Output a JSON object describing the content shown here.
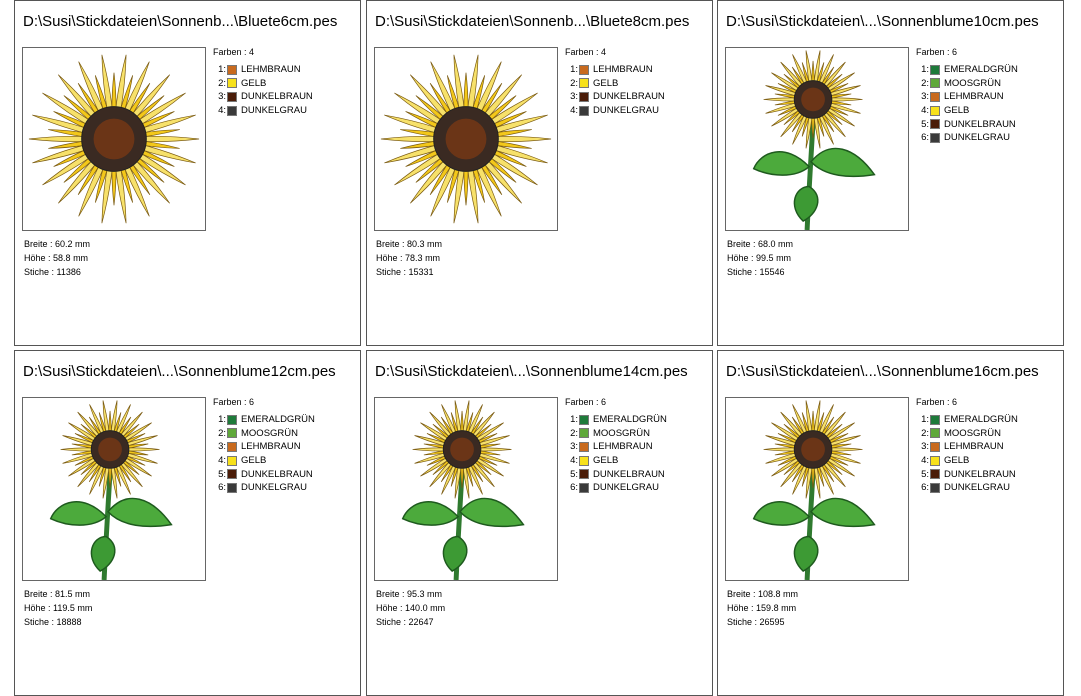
{
  "labels": {
    "colors": "Farben :",
    "width": "Breite :",
    "height": "Höhe :",
    "stitches": "Stiche :"
  },
  "cards": [
    {
      "file": "D:\\Susi\\Stickdateien\\Sonnenb...\\Bluete6cm.pes",
      "image": "sunflower-bloom-icon",
      "color_count": "4",
      "colors": [
        {
          "idx": "1:",
          "name": "LEHMBRAUN",
          "hex": "#c86a1e"
        },
        {
          "idx": "2:",
          "name": "GELB",
          "hex": "#f7e11b"
        },
        {
          "idx": "3:",
          "name": "DUNKELBRAUN",
          "hex": "#4a1c08"
        },
        {
          "idx": "4:",
          "name": "DUNKELGRAU",
          "hex": "#3a3a3a"
        }
      ],
      "width": "60.2 mm",
      "height": "58.8 mm",
      "stitches": "11386"
    },
    {
      "file": "D:\\Susi\\Stickdateien\\Sonnenb...\\Bluete8cm.pes",
      "image": "sunflower-bloom-icon",
      "color_count": "4",
      "colors": [
        {
          "idx": "1:",
          "name": "LEHMBRAUN",
          "hex": "#c86a1e"
        },
        {
          "idx": "2:",
          "name": "GELB",
          "hex": "#f7e11b"
        },
        {
          "idx": "3:",
          "name": "DUNKELBRAUN",
          "hex": "#4a1c08"
        },
        {
          "idx": "4:",
          "name": "DUNKELGRAU",
          "hex": "#3a3a3a"
        }
      ],
      "width": "80.3 mm",
      "height": "78.3 mm",
      "stitches": "15331"
    },
    {
      "file": "D:\\Susi\\Stickdateien\\...\\Sonnenblume10cm.pes",
      "image": "sunflower-stem-icon",
      "color_count": "6",
      "colors": [
        {
          "idx": "1:",
          "name": "EMERALDGRÜN",
          "hex": "#1e7a3a"
        },
        {
          "idx": "2:",
          "name": "MOOSGRÜN",
          "hex": "#5fa83a"
        },
        {
          "idx": "3:",
          "name": "LEHMBRAUN",
          "hex": "#c86a1e"
        },
        {
          "idx": "4:",
          "name": "GELB",
          "hex": "#f7e11b"
        },
        {
          "idx": "5:",
          "name": "DUNKELBRAUN",
          "hex": "#4a1c08"
        },
        {
          "idx": "6:",
          "name": "DUNKELGRAU",
          "hex": "#3a3a3a"
        }
      ],
      "width": "68.0 mm",
      "height": "99.5 mm",
      "stitches": "15546"
    },
    {
      "file": "D:\\Susi\\Stickdateien\\...\\Sonnenblume12cm.pes",
      "image": "sunflower-stem-icon",
      "color_count": "6",
      "colors": [
        {
          "idx": "1:",
          "name": "EMERALDGRÜN",
          "hex": "#1e7a3a"
        },
        {
          "idx": "2:",
          "name": "MOOSGRÜN",
          "hex": "#5fa83a"
        },
        {
          "idx": "3:",
          "name": "LEHMBRAUN",
          "hex": "#c86a1e"
        },
        {
          "idx": "4:",
          "name": "GELB",
          "hex": "#f7e11b"
        },
        {
          "idx": "5:",
          "name": "DUNKELBRAUN",
          "hex": "#4a1c08"
        },
        {
          "idx": "6:",
          "name": "DUNKELGRAU",
          "hex": "#3a3a3a"
        }
      ],
      "width": "81.5 mm",
      "height": "119.5 mm",
      "stitches": "18888"
    },
    {
      "file": "D:\\Susi\\Stickdateien\\...\\Sonnenblume14cm.pes",
      "image": "sunflower-stem-icon",
      "color_count": "6",
      "colors": [
        {
          "idx": "1:",
          "name": "EMERALDGRÜN",
          "hex": "#1e7a3a"
        },
        {
          "idx": "2:",
          "name": "MOOSGRÜN",
          "hex": "#5fa83a"
        },
        {
          "idx": "3:",
          "name": "LEHMBRAUN",
          "hex": "#c86a1e"
        },
        {
          "idx": "4:",
          "name": "GELB",
          "hex": "#f7e11b"
        },
        {
          "idx": "5:",
          "name": "DUNKELBRAUN",
          "hex": "#4a1c08"
        },
        {
          "idx": "6:",
          "name": "DUNKELGRAU",
          "hex": "#3a3a3a"
        }
      ],
      "width": "95.3 mm",
      "height": "140.0 mm",
      "stitches": "22647"
    },
    {
      "file": "D:\\Susi\\Stickdateien\\...\\Sonnenblume16cm.pes",
      "image": "sunflower-stem-icon",
      "color_count": "6",
      "colors": [
        {
          "idx": "1:",
          "name": "EMERALDGRÜN",
          "hex": "#1e7a3a"
        },
        {
          "idx": "2:",
          "name": "MOOSGRÜN",
          "hex": "#5fa83a"
        },
        {
          "idx": "3:",
          "name": "LEHMBRAUN",
          "hex": "#c86a1e"
        },
        {
          "idx": "4:",
          "name": "GELB",
          "hex": "#f7e11b"
        },
        {
          "idx": "5:",
          "name": "DUNKELBRAUN",
          "hex": "#4a1c08"
        },
        {
          "idx": "6:",
          "name": "DUNKELGRAU",
          "hex": "#3a3a3a"
        }
      ],
      "width": "108.8 mm",
      "height": "159.8 mm",
      "stitches": "26595"
    }
  ]
}
